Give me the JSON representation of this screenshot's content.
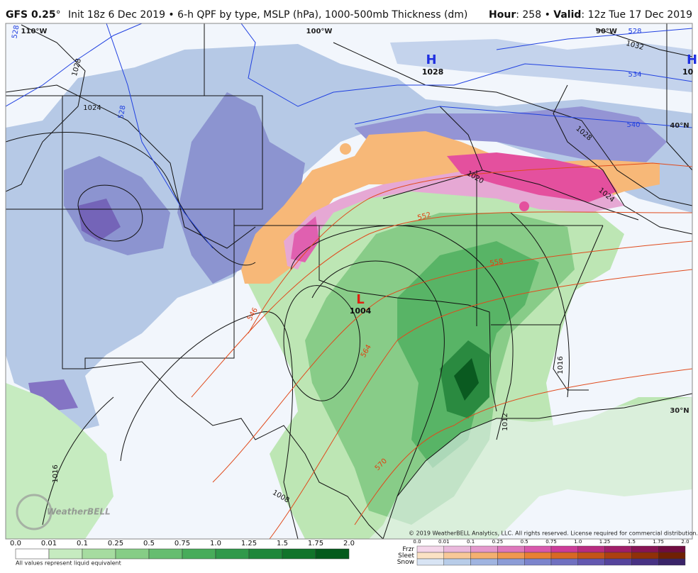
{
  "header": {
    "model": "GFS 0.25",
    "degree": "°",
    "info": "Init 18z 6 Dec 2019 • 6-h QPF by type, MSLP (hPa), 1000-500mb Thickness (dm)",
    "hour_label": "Hour",
    "hour": ": 258 • ",
    "valid_label": "Valid",
    "valid": ": 12z Tue 17 Dec 2019"
  },
  "map": {
    "graticule": [
      "110°W",
      "100°W",
      "90°W",
      "40°N",
      "30°N"
    ],
    "centers": [
      {
        "symbol": "H",
        "value": "1028"
      },
      {
        "symbol": "L",
        "value": "1004"
      },
      {
        "symbol": "H",
        "value": "10"
      }
    ],
    "isobars": [
      "1028",
      "1024",
      "1032",
      "1028",
      "1024",
      "1020",
      "1016",
      "1012",
      "1008",
      "1016"
    ],
    "thickness": [
      "528",
      "528",
      "528",
      "534",
      "540",
      "546",
      "552",
      "558",
      "564",
      "570"
    ],
    "logo": "WeatherBELL"
  },
  "copyright": "© 2019 WeatherBELL Analytics, LLC. All rights reserved. License required for commercial distribution.",
  "legend": {
    "qpf": {
      "labels": [
        "0.0",
        "0.01",
        "0.1",
        "0.25",
        "0.5",
        "0.75",
        "1.0",
        "1.25",
        "1.5",
        "1.75",
        "2.0"
      ],
      "colors": [
        "#ffffff",
        "#c6ebc0",
        "#a6dca0",
        "#86cd86",
        "#66bd70",
        "#48ac5a",
        "#30994a",
        "#1f873a",
        "#11742a",
        "#045a1c"
      ]
    },
    "note": "All values represent liquid equivalent",
    "types": {
      "labels": [
        "0.0",
        "0.01",
        "0.1",
        "0.25",
        "0.5",
        "0.75",
        "1.0",
        "1.25",
        "1.5",
        "1.75",
        "2.0"
      ],
      "rows": [
        {
          "name": "Frzr",
          "colors": [
            "#f4d6ea",
            "#eab8dc",
            "#e498cc",
            "#de78bc",
            "#d858ac",
            "#cc3c98",
            "#b82c80",
            "#a01e68",
            "#881454",
            "#700c40"
          ]
        },
        {
          "name": "Sleet",
          "colors": [
            "#fbe2c4",
            "#f8c898",
            "#f4b070",
            "#f09850",
            "#e88034",
            "#d86824",
            "#c45418",
            "#ac4010",
            "#903008",
            "#702004"
          ]
        },
        {
          "name": "Snow",
          "colors": [
            "#d8e4f4",
            "#b8cce8",
            "#a0b4e0",
            "#8c9cd6",
            "#7c84cc",
            "#7070c0",
            "#6458b0",
            "#56449c",
            "#483284",
            "#3a2468"
          ]
        }
      ]
    }
  }
}
